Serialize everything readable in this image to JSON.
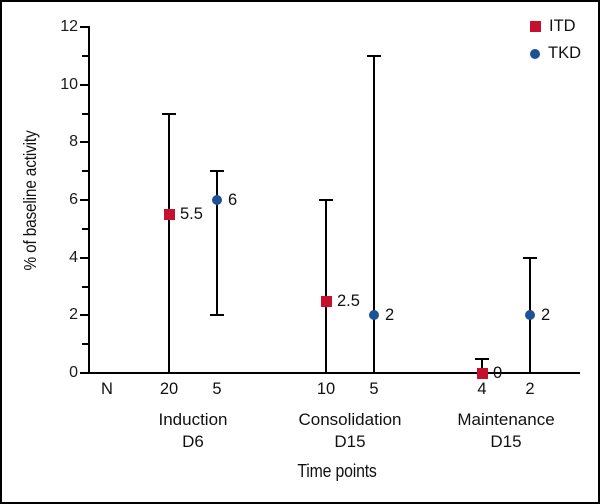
{
  "chart_data": {
    "type": "scatter",
    "title": "",
    "xlabel": "Time points",
    "ylabel": "% of baseline activity",
    "ylim": [
      0,
      12
    ],
    "yticks": [
      0,
      2,
      4,
      6,
      8,
      10,
      12
    ],
    "yticks_minor": [
      1,
      3,
      5,
      7,
      9,
      11
    ],
    "grid": false,
    "legend_position": "top-right",
    "n_header": "N",
    "series": [
      {
        "name": "ITD",
        "marker": "square",
        "color": "#c5102e"
      },
      {
        "name": "TKD",
        "marker": "circle",
        "color": "#1d5295"
      }
    ],
    "groups": [
      {
        "label": "Induction",
        "sublabel": "D6",
        "points": [
          {
            "series": "ITD",
            "value": 5.5,
            "value_label": "5.5",
            "err_low": 0,
            "err_high": 9,
            "n": "20"
          },
          {
            "series": "TKD",
            "value": 6,
            "value_label": "6",
            "err_low": 2,
            "err_high": 7,
            "n": "5"
          }
        ]
      },
      {
        "label": "Consolidation",
        "sublabel": "D15",
        "points": [
          {
            "series": "ITD",
            "value": 2.5,
            "value_label": "2.5",
            "err_low": 0,
            "err_high": 6,
            "n": "10"
          },
          {
            "series": "TKD",
            "value": 2,
            "value_label": "2",
            "err_low": 0,
            "err_high": 11,
            "n": "5"
          }
        ]
      },
      {
        "label": "Maintenance",
        "sublabel": "D15",
        "points": [
          {
            "series": "ITD",
            "value": 0,
            "value_label": "0",
            "err_low": 0,
            "err_high": 0.5,
            "n": "4"
          },
          {
            "series": "TKD",
            "value": 2,
            "value_label": "2",
            "err_low": 0,
            "err_high": 4,
            "n": "2"
          }
        ]
      }
    ]
  }
}
